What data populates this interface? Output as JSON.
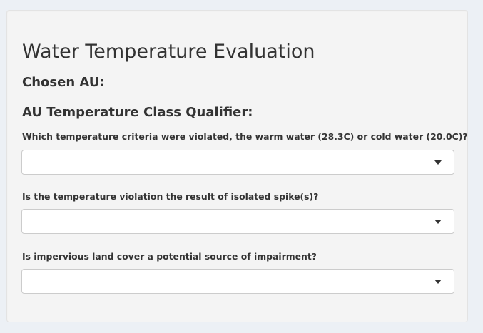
{
  "panel": {
    "title": "Water Temperature Evaluation",
    "chosen_au_label": "Chosen AU:",
    "class_qualifier_label": "AU Temperature Class Qualifier:"
  },
  "questions": [
    {
      "label": "Which temperature criteria were violated, the warm water (28.3C) or cold water (20.0C)?",
      "selected_value": "",
      "icon": "caret-down-icon"
    },
    {
      "label": "Is the temperature violation the result of isolated spike(s)?",
      "selected_value": "",
      "icon": "caret-down-icon"
    },
    {
      "label": "Is impervious land cover a potential source of impairment?",
      "selected_value": "",
      "icon": "caret-down-icon"
    }
  ],
  "colors": {
    "page_background": "#ecf0f5",
    "panel_background": "#f4f4f4",
    "text": "#333333",
    "select_border": "#cccccc",
    "select_background": "#ffffff"
  }
}
